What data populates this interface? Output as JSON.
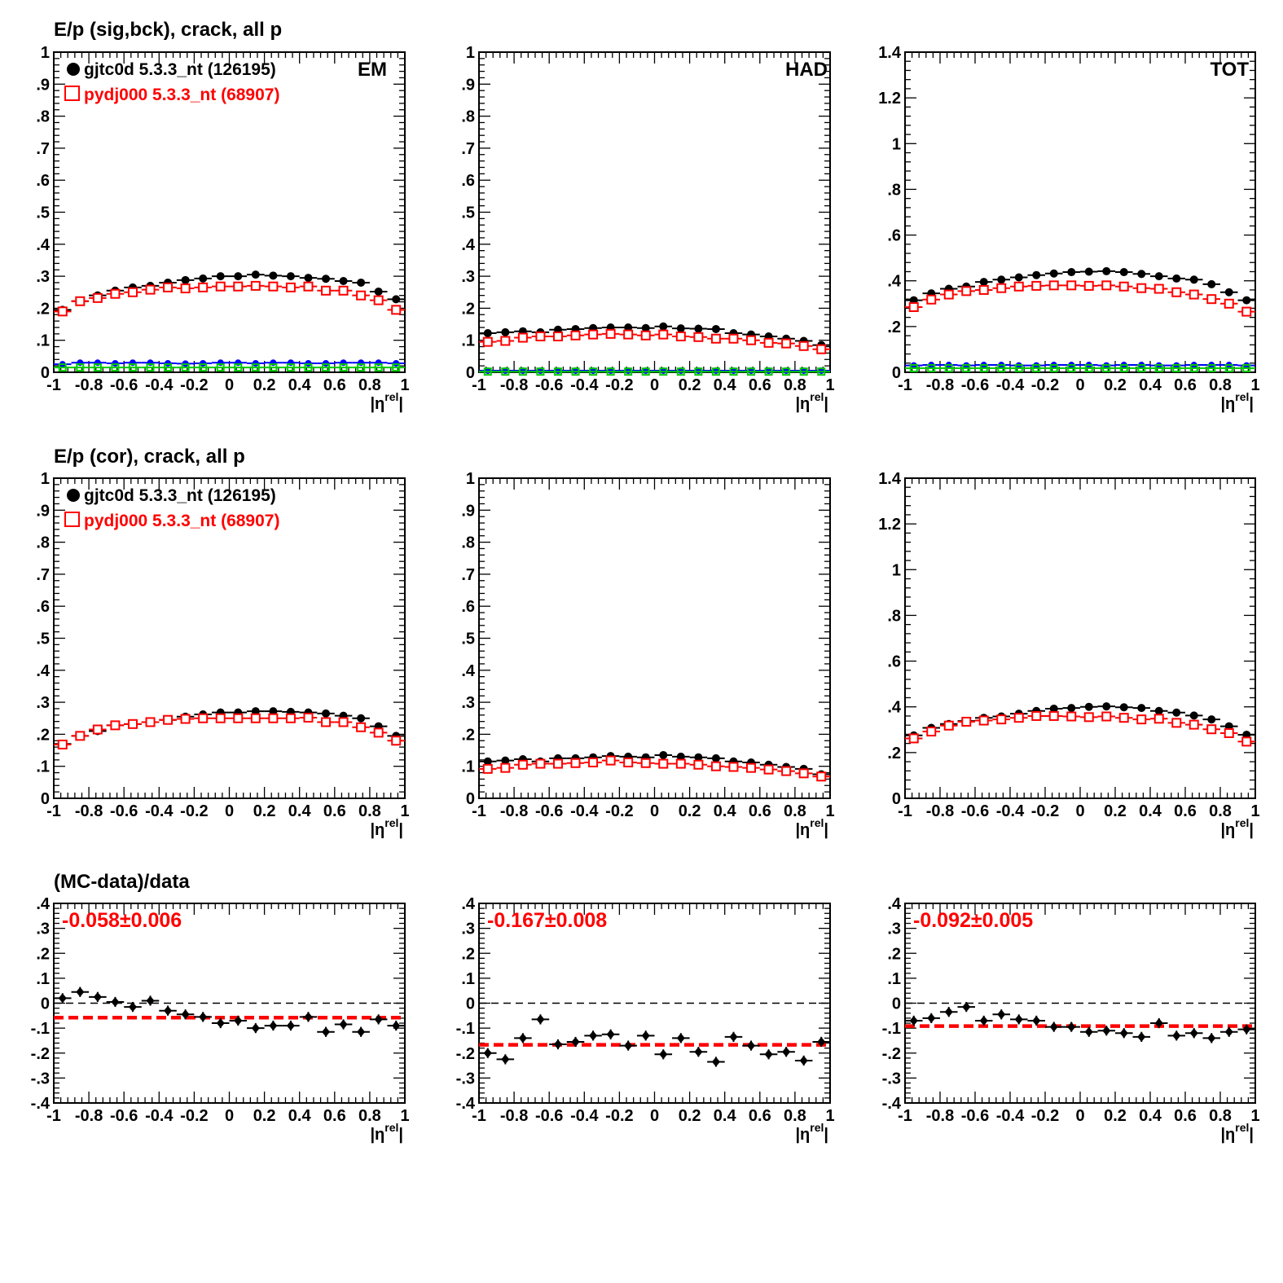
{
  "figure": {
    "row_titles": [
      "E/p (sig,bck), crack, all p",
      "E/p (cor), crack, all p",
      "(MC-data)/data"
    ],
    "legend": [
      {
        "label": "gjtc0d 5.3.3_nt (126195)",
        "marker": "filled-circle",
        "color": "#000000"
      },
      {
        "label": "pydj000 5.3.3_nt (68907)",
        "marker": "open-square",
        "color": "#ff0000"
      }
    ],
    "panel_labels": [
      "EM",
      "HAD",
      "TOT"
    ],
    "xlabel_main": "|η",
    "xlabel_sup": "rel",
    "xlabel_end": "|",
    "colors": {
      "data": "#000000",
      "mc": "#ff0000",
      "bck_data": "#0000ff",
      "bck_mc": "#00cc00"
    }
  },
  "chart_data": [
    {
      "type": "scatter",
      "row": 0,
      "col": 0,
      "panel_label": "EM",
      "title": "E/p (sig,bck), crack, all p",
      "xlim": [
        -1,
        1
      ],
      "ylim": [
        0,
        1
      ],
      "xticks": [
        -1,
        -0.8,
        -0.6,
        -0.4,
        -0.2,
        0,
        0.2,
        0.4,
        0.6,
        0.8,
        1
      ],
      "yticks": [
        0,
        0.1,
        0.2,
        0.3,
        0.4,
        0.5,
        0.6,
        0.7,
        0.8,
        0.9,
        1
      ],
      "x": [
        -0.95,
        -0.85,
        -0.75,
        -0.65,
        -0.55,
        -0.45,
        -0.35,
        -0.25,
        -0.15,
        -0.05,
        0.05,
        0.15,
        0.25,
        0.35,
        0.45,
        0.55,
        0.65,
        0.75,
        0.85,
        0.95
      ],
      "series": [
        {
          "name": "gjtc0d 5.3.3_nt (126195)",
          "marker": "filled-circle",
          "values": [
            0.195,
            0.222,
            0.24,
            0.255,
            0.265,
            0.27,
            0.28,
            0.288,
            0.293,
            0.3,
            0.3,
            0.305,
            0.302,
            0.3,
            0.295,
            0.292,
            0.285,
            0.28,
            0.252,
            0.228
          ]
        },
        {
          "name": "pydj000 5.3.3_nt (68907)",
          "marker": "open-square",
          "values": [
            0.19,
            0.222,
            0.232,
            0.245,
            0.25,
            0.258,
            0.265,
            0.262,
            0.265,
            0.268,
            0.268,
            0.27,
            0.268,
            0.265,
            0.268,
            0.255,
            0.255,
            0.24,
            0.225,
            0.195
          ]
        },
        {
          "marker": "small-dot-blue",
          "values": [
            0.025,
            0.03,
            0.03,
            0.028,
            0.03,
            0.03,
            0.028,
            0.027,
            0.028,
            0.03,
            0.03,
            0.028,
            0.03,
            0.03,
            0.028,
            0.028,
            0.03,
            0.03,
            0.03,
            0.028
          ]
        },
        {
          "marker": "open-square-green",
          "values": [
            0.015,
            0.015,
            0.015,
            0.015,
            0.015,
            0.015,
            0.015,
            0.015,
            0.015,
            0.015,
            0.015,
            0.015,
            0.015,
            0.015,
            0.015,
            0.015,
            0.015,
            0.015,
            0.015,
            0.015
          ]
        }
      ]
    },
    {
      "type": "scatter",
      "row": 0,
      "col": 1,
      "panel_label": "HAD",
      "xlim": [
        -1,
        1
      ],
      "ylim": [
        0,
        1
      ],
      "xticks": [
        -1,
        -0.8,
        -0.6,
        -0.4,
        -0.2,
        0,
        0.2,
        0.4,
        0.6,
        0.8,
        1
      ],
      "yticks": [
        0,
        0.1,
        0.2,
        0.3,
        0.4,
        0.5,
        0.6,
        0.7,
        0.8,
        0.9,
        1
      ],
      "x": [
        -0.95,
        -0.85,
        -0.75,
        -0.65,
        -0.55,
        -0.45,
        -0.35,
        -0.25,
        -0.15,
        -0.05,
        0.05,
        0.15,
        0.25,
        0.35,
        0.45,
        0.55,
        0.65,
        0.75,
        0.85,
        0.95
      ],
      "series": [
        {
          "name": "gjtc0d 5.3.3_nt (126195)",
          "marker": "filled-circle",
          "values": [
            0.122,
            0.125,
            0.128,
            0.125,
            0.133,
            0.135,
            0.138,
            0.14,
            0.14,
            0.138,
            0.143,
            0.137,
            0.136,
            0.135,
            0.122,
            0.118,
            0.112,
            0.105,
            0.098,
            0.085
          ]
        },
        {
          "name": "pydj000 5.3.3_nt (68907)",
          "marker": "open-square",
          "values": [
            0.095,
            0.098,
            0.108,
            0.112,
            0.112,
            0.115,
            0.118,
            0.12,
            0.118,
            0.115,
            0.118,
            0.112,
            0.11,
            0.105,
            0.105,
            0.1,
            0.092,
            0.09,
            0.082,
            0.072
          ]
        },
        {
          "marker": "small-dot-blue",
          "values": [
            0.005,
            0.005,
            0.005,
            0.005,
            0.005,
            0.005,
            0.005,
            0.005,
            0.005,
            0.005,
            0.005,
            0.005,
            0.005,
            0.005,
            0.005,
            0.005,
            0.005,
            0.005,
            0.005,
            0.005
          ]
        },
        {
          "marker": "open-square-green",
          "values": [
            0.002,
            0.002,
            0.002,
            0.002,
            0.002,
            0.002,
            0.002,
            0.002,
            0.002,
            0.002,
            0.002,
            0.002,
            0.002,
            0.002,
            0.002,
            0.002,
            0.002,
            0.002,
            0.002,
            0.002
          ]
        }
      ]
    },
    {
      "type": "scatter",
      "row": 0,
      "col": 2,
      "panel_label": "TOT",
      "xlim": [
        -1,
        1
      ],
      "ylim": [
        0,
        1.4
      ],
      "xticks": [
        -1,
        -0.8,
        -0.6,
        -0.4,
        -0.2,
        0,
        0.2,
        0.4,
        0.6,
        0.8,
        1
      ],
      "yticks": [
        0,
        0.2,
        0.4,
        0.6,
        0.8,
        1,
        1.2,
        1.4
      ],
      "x": [
        -0.95,
        -0.85,
        -0.75,
        -0.65,
        -0.55,
        -0.45,
        -0.35,
        -0.25,
        -0.15,
        -0.05,
        0.05,
        0.15,
        0.25,
        0.35,
        0.45,
        0.55,
        0.65,
        0.75,
        0.85,
        0.95
      ],
      "series": [
        {
          "name": "gjtc0d 5.3.3_nt (126195)",
          "marker": "filled-circle",
          "values": [
            0.315,
            0.345,
            0.365,
            0.375,
            0.395,
            0.405,
            0.415,
            0.425,
            0.432,
            0.438,
            0.44,
            0.442,
            0.438,
            0.43,
            0.42,
            0.41,
            0.405,
            0.385,
            0.35,
            0.315
          ]
        },
        {
          "name": "pydj000 5.3.3_nt (68907)",
          "marker": "open-square",
          "values": [
            0.285,
            0.318,
            0.34,
            0.355,
            0.36,
            0.368,
            0.375,
            0.378,
            0.38,
            0.38,
            0.378,
            0.38,
            0.375,
            0.368,
            0.365,
            0.35,
            0.34,
            0.32,
            0.3,
            0.265
          ]
        },
        {
          "marker": "small-dot-blue",
          "values": [
            0.03,
            0.032,
            0.032,
            0.03,
            0.032,
            0.032,
            0.03,
            0.03,
            0.032,
            0.032,
            0.032,
            0.03,
            0.032,
            0.032,
            0.03,
            0.03,
            0.032,
            0.032,
            0.032,
            0.03
          ]
        },
        {
          "marker": "open-square-green",
          "values": [
            0.018,
            0.018,
            0.018,
            0.018,
            0.018,
            0.018,
            0.018,
            0.018,
            0.018,
            0.018,
            0.018,
            0.018,
            0.018,
            0.018,
            0.018,
            0.018,
            0.018,
            0.018,
            0.018,
            0.018
          ]
        }
      ]
    },
    {
      "type": "scatter",
      "row": 1,
      "col": 0,
      "title": "E/p (cor), crack, all p",
      "xlim": [
        -1,
        1
      ],
      "ylim": [
        0,
        1
      ],
      "xticks": [
        -1,
        -0.8,
        -0.6,
        -0.4,
        -0.2,
        0,
        0.2,
        0.4,
        0.6,
        0.8,
        1
      ],
      "yticks": [
        0,
        0.1,
        0.2,
        0.3,
        0.4,
        0.5,
        0.6,
        0.7,
        0.8,
        0.9,
        1
      ],
      "x": [
        -0.95,
        -0.85,
        -0.75,
        -0.65,
        -0.55,
        -0.45,
        -0.35,
        -0.25,
        -0.15,
        -0.05,
        0.05,
        0.15,
        0.25,
        0.35,
        0.45,
        0.55,
        0.65,
        0.75,
        0.85,
        0.95
      ],
      "series": [
        {
          "name": "gjtc0d 5.3.3_nt (126195)",
          "marker": "filled-circle",
          "values": [
            0.17,
            0.195,
            0.21,
            0.228,
            0.232,
            0.238,
            0.245,
            0.255,
            0.262,
            0.268,
            0.268,
            0.272,
            0.272,
            0.27,
            0.268,
            0.265,
            0.258,
            0.25,
            0.225,
            0.195
          ]
        },
        {
          "name": "pydj000 5.3.3_nt (68907)",
          "marker": "open-square",
          "values": [
            0.168,
            0.195,
            0.215,
            0.228,
            0.232,
            0.238,
            0.245,
            0.248,
            0.25,
            0.25,
            0.25,
            0.25,
            0.25,
            0.25,
            0.252,
            0.238,
            0.238,
            0.222,
            0.205,
            0.18
          ]
        }
      ]
    },
    {
      "type": "scatter",
      "row": 1,
      "col": 1,
      "xlim": [
        -1,
        1
      ],
      "ylim": [
        0,
        1
      ],
      "xticks": [
        -1,
        -0.8,
        -0.6,
        -0.4,
        -0.2,
        0,
        0.2,
        0.4,
        0.6,
        0.8,
        1
      ],
      "yticks": [
        0,
        0.1,
        0.2,
        0.3,
        0.4,
        0.5,
        0.6,
        0.7,
        0.8,
        0.9,
        1
      ],
      "x": [
        -0.95,
        -0.85,
        -0.75,
        -0.65,
        -0.55,
        -0.45,
        -0.35,
        -0.25,
        -0.15,
        -0.05,
        0.05,
        0.15,
        0.25,
        0.35,
        0.45,
        0.55,
        0.65,
        0.75,
        0.85,
        0.95
      ],
      "series": [
        {
          "name": "gjtc0d 5.3.3_nt (126195)",
          "marker": "filled-circle",
          "values": [
            0.115,
            0.118,
            0.122,
            0.115,
            0.125,
            0.125,
            0.128,
            0.132,
            0.13,
            0.128,
            0.135,
            0.13,
            0.128,
            0.125,
            0.115,
            0.112,
            0.105,
            0.098,
            0.092,
            0.075
          ]
        },
        {
          "name": "pydj000 5.3.3_nt (68907)",
          "marker": "open-square",
          "values": [
            0.092,
            0.095,
            0.105,
            0.108,
            0.108,
            0.11,
            0.112,
            0.118,
            0.112,
            0.11,
            0.108,
            0.108,
            0.105,
            0.1,
            0.098,
            0.095,
            0.09,
            0.085,
            0.078,
            0.068
          ]
        }
      ]
    },
    {
      "type": "scatter",
      "row": 1,
      "col": 2,
      "xlim": [
        -1,
        1
      ],
      "ylim": [
        0,
        1.4
      ],
      "xticks": [
        -1,
        -0.8,
        -0.6,
        -0.4,
        -0.2,
        0,
        0.2,
        0.4,
        0.6,
        0.8,
        1
      ],
      "yticks": [
        0,
        0.2,
        0.4,
        0.6,
        0.8,
        1,
        1.2,
        1.4
      ],
      "x": [
        -0.95,
        -0.85,
        -0.75,
        -0.65,
        -0.55,
        -0.45,
        -0.35,
        -0.25,
        -0.15,
        -0.05,
        0.05,
        0.15,
        0.25,
        0.35,
        0.45,
        0.55,
        0.65,
        0.75,
        0.85,
        0.95
      ],
      "series": [
        {
          "name": "gjtc0d 5.3.3_nt (126195)",
          "marker": "filled-circle",
          "values": [
            0.275,
            0.308,
            0.325,
            0.338,
            0.352,
            0.358,
            0.37,
            0.382,
            0.392,
            0.395,
            0.4,
            0.402,
            0.398,
            0.395,
            0.382,
            0.375,
            0.362,
            0.345,
            0.315,
            0.278
          ]
        },
        {
          "name": "pydj000 5.3.3_nt (68907)",
          "marker": "open-square",
          "values": [
            0.262,
            0.292,
            0.318,
            0.335,
            0.34,
            0.345,
            0.352,
            0.36,
            0.36,
            0.358,
            0.355,
            0.358,
            0.352,
            0.345,
            0.348,
            0.33,
            0.322,
            0.302,
            0.285,
            0.248
          ]
        }
      ]
    },
    {
      "type": "scatter",
      "row": 2,
      "col": 0,
      "title": "(MC-data)/data",
      "fit_label": "-0.058±0.006",
      "fit_value": -0.058,
      "xlim": [
        -1,
        1
      ],
      "ylim": [
        -0.4,
        0.4
      ],
      "xticks": [
        -1,
        -0.8,
        -0.6,
        -0.4,
        -0.2,
        0,
        0.2,
        0.4,
        0.6,
        0.8,
        1
      ],
      "yticks": [
        -0.4,
        -0.3,
        -0.2,
        -0.1,
        0,
        0.1,
        0.2,
        0.3,
        0.4
      ],
      "x": [
        -0.95,
        -0.85,
        -0.75,
        -0.65,
        -0.55,
        -0.45,
        -0.35,
        -0.25,
        -0.15,
        -0.05,
        0.05,
        0.15,
        0.25,
        0.35,
        0.45,
        0.55,
        0.65,
        0.75,
        0.85,
        0.95
      ],
      "series": [
        {
          "marker": "filled-diamond",
          "values": [
            0.02,
            0.045,
            0.025,
            0.005,
            -0.015,
            0.01,
            -0.03,
            -0.045,
            -0.055,
            -0.08,
            -0.07,
            -0.1,
            -0.09,
            -0.09,
            -0.055,
            -0.115,
            -0.085,
            -0.115,
            -0.065,
            -0.09
          ]
        }
      ]
    },
    {
      "type": "scatter",
      "row": 2,
      "col": 1,
      "fit_label": "-0.167±0.008",
      "fit_value": -0.167,
      "xlim": [
        -1,
        1
      ],
      "ylim": [
        -0.4,
        0.4
      ],
      "xticks": [
        -1,
        -0.8,
        -0.6,
        -0.4,
        -0.2,
        0,
        0.2,
        0.4,
        0.6,
        0.8,
        1
      ],
      "yticks": [
        -0.4,
        -0.3,
        -0.2,
        -0.1,
        0,
        0.1,
        0.2,
        0.3,
        0.4
      ],
      "x": [
        -0.95,
        -0.85,
        -0.75,
        -0.65,
        -0.55,
        -0.45,
        -0.35,
        -0.25,
        -0.15,
        -0.05,
        0.05,
        0.15,
        0.25,
        0.35,
        0.45,
        0.55,
        0.65,
        0.75,
        0.85,
        0.95
      ],
      "series": [
        {
          "marker": "filled-diamond",
          "values": [
            -0.2,
            -0.225,
            -0.14,
            -0.065,
            -0.165,
            -0.155,
            -0.13,
            -0.125,
            -0.17,
            -0.13,
            -0.205,
            -0.14,
            -0.195,
            -0.235,
            -0.135,
            -0.17,
            -0.205,
            -0.195,
            -0.23,
            -0.155
          ]
        }
      ]
    },
    {
      "type": "scatter",
      "row": 2,
      "col": 2,
      "fit_label": "-0.092±0.005",
      "fit_value": -0.092,
      "xlim": [
        -1,
        1
      ],
      "ylim": [
        -0.4,
        0.4
      ],
      "xticks": [
        -1,
        -0.8,
        -0.6,
        -0.4,
        -0.2,
        0,
        0.2,
        0.4,
        0.6,
        0.8,
        1
      ],
      "yticks": [
        -0.4,
        -0.3,
        -0.2,
        -0.1,
        0,
        0.1,
        0.2,
        0.3,
        0.4
      ],
      "x": [
        -0.95,
        -0.85,
        -0.75,
        -0.65,
        -0.55,
        -0.45,
        -0.35,
        -0.25,
        -0.15,
        -0.05,
        0.05,
        0.15,
        0.25,
        0.35,
        0.45,
        0.55,
        0.65,
        0.75,
        0.85,
        0.95
      ],
      "series": [
        {
          "marker": "filled-diamond",
          "values": [
            -0.07,
            -0.06,
            -0.035,
            -0.015,
            -0.07,
            -0.045,
            -0.065,
            -0.07,
            -0.095,
            -0.095,
            -0.115,
            -0.11,
            -0.12,
            -0.135,
            -0.08,
            -0.13,
            -0.12,
            -0.14,
            -0.115,
            -0.105
          ]
        }
      ]
    }
  ]
}
